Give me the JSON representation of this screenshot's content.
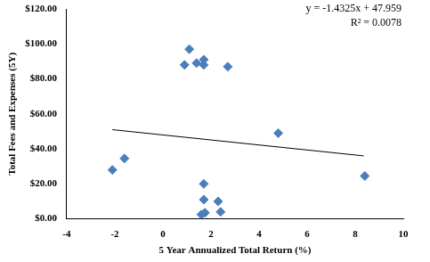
{
  "chart_data": {
    "type": "scatter",
    "x_label": "5 Year Annualized Total Return (%)",
    "y_label": "Total Fees and Expenses (5Y)",
    "annotations": [
      "y = -1.4325x + 47.959",
      "R² = 0.0078"
    ],
    "series": [
      {
        "type": "scatter",
        "marker": "diamond",
        "color": "#4a7ebb",
        "x": [
          1.1,
          0.9,
          1.4,
          1.7,
          1.7,
          2.7,
          4.8,
          8.4,
          -2.1,
          -1.6,
          1.7,
          1.7,
          2.3,
          2.4,
          1.6,
          1.75
        ],
        "values": [
          97,
          88,
          89,
          91,
          88,
          87,
          49,
          24.5,
          28,
          34.5,
          20,
          11,
          10,
          4,
          2.5,
          3.5
        ]
      },
      {
        "type": "line",
        "line_style": "solid",
        "color": "#000000",
        "x": [
          -2.1,
          8.35
        ],
        "values": [
          50.97,
          36.0
        ]
      }
    ],
    "xlim": [
      -4,
      10
    ],
    "xticks": [
      -4,
      -2,
      0,
      2,
      4,
      6,
      8,
      10
    ],
    "ylim": [
      0,
      120
    ],
    "yticks": [
      {
        "value": 0,
        "label": "$0.00"
      },
      {
        "value": 20,
        "label": "$20.00"
      },
      {
        "value": 40,
        "label": "$40.00"
      },
      {
        "value": 60,
        "label": "$60.00"
      },
      {
        "value": 80,
        "label": "$80.00"
      },
      {
        "value": 100,
        "label": "$100.00"
      },
      {
        "value": 120,
        "label": "$120.00"
      }
    ],
    "grid": false
  }
}
